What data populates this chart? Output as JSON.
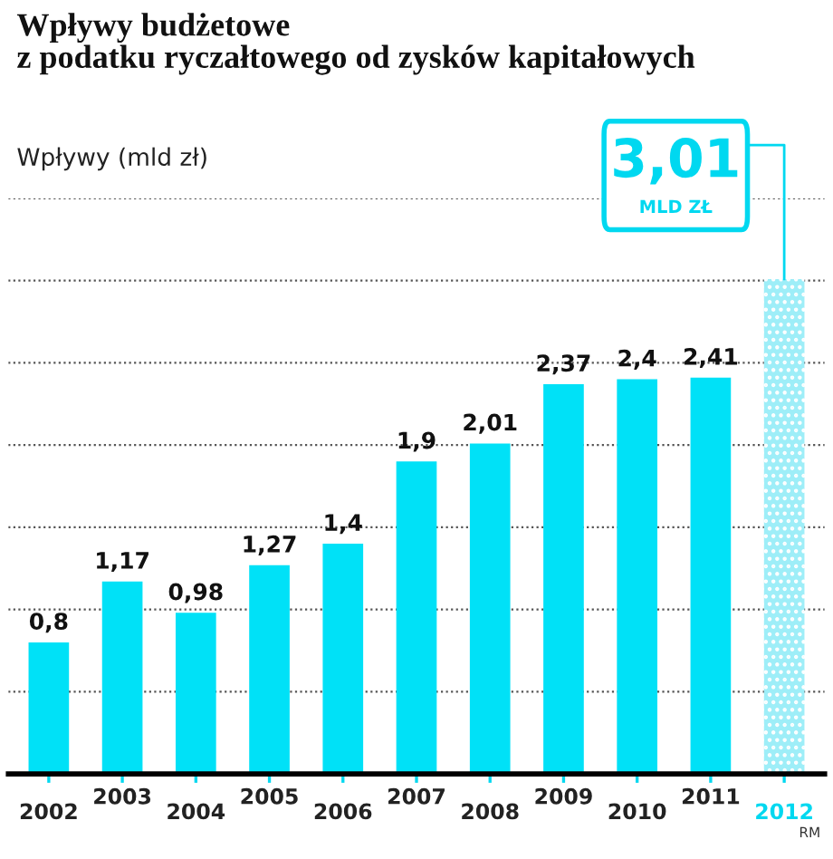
{
  "chart_data": {
    "type": "bar",
    "title": "Wpływy budżetowe\nz podatku ryczałtowego od zysków kapitałowych",
    "ylabel": "Wpływy (mld zł)",
    "categories": [
      "2002",
      "2003",
      "2004",
      "2005",
      "2006",
      "2007",
      "2008",
      "2009",
      "2010",
      "2011",
      "2012"
    ],
    "values": [
      0.8,
      1.17,
      0.98,
      1.27,
      1.4,
      1.9,
      2.01,
      2.37,
      2.4,
      2.41,
      3.01
    ],
    "colors": [
      "#00e1f7",
      "#00e1f7",
      "#00e1f7",
      "#00e1f7",
      "#00e1f7",
      "#00e1f7",
      "#00e1f7",
      "#00e1f7",
      "#00e1f7",
      "#00e1f7",
      "#9eeef8"
    ],
    "value_labels": [
      "0,8",
      "1,17",
      "0,98",
      "1,27",
      "1,4",
      "1,9",
      "2,01",
      "2,37",
      "2,4",
      "2,41",
      null
    ],
    "yticks": [
      {
        "value": 0.5,
        "label": null
      },
      {
        "value": 1,
        "label": null
      },
      {
        "value": 1.5,
        "label": null
      },
      {
        "value": 2,
        "label": null
      },
      {
        "value": 2.5,
        "label": null
      },
      {
        "value": 3,
        "label": null
      },
      {
        "value": 3.5,
        "label": null
      }
    ],
    "grid": "y",
    "tick_labels": "x",
    "annotations": [
      {
        "text": "3,01\nMLD ZŁ",
        "x": "2012",
        "y": 3.01
      },
      "RM"
    ]
  }
}
